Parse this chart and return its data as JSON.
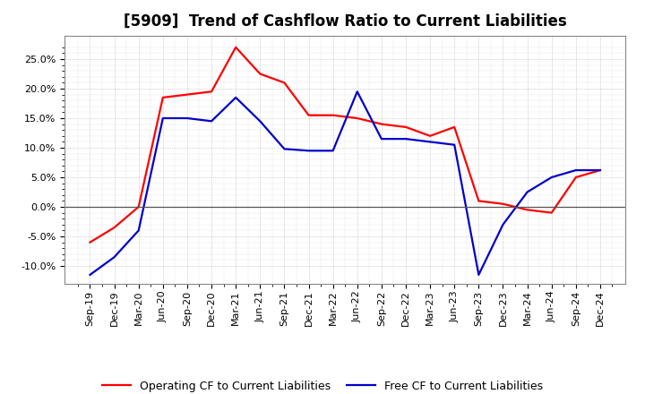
{
  "title": "[5909]  Trend of Cashflow Ratio to Current Liabilities",
  "x_labels": [
    "Sep-19",
    "Dec-19",
    "Mar-20",
    "Jun-20",
    "Sep-20",
    "Dec-20",
    "Mar-21",
    "Jun-21",
    "Sep-21",
    "Dec-21",
    "Mar-22",
    "Jun-22",
    "Sep-22",
    "Dec-22",
    "Mar-23",
    "Jun-23",
    "Sep-23",
    "Dec-23",
    "Mar-24",
    "Jun-24",
    "Sep-24",
    "Dec-24"
  ],
  "operating_cf": [
    -6.0,
    -3.5,
    0.0,
    18.5,
    19.0,
    19.5,
    27.0,
    22.5,
    21.0,
    15.5,
    15.5,
    15.0,
    14.0,
    13.5,
    12.0,
    13.5,
    1.0,
    0.5,
    -0.5,
    -1.0,
    5.0,
    6.2
  ],
  "free_cf": [
    -11.5,
    -8.5,
    -4.0,
    15.0,
    15.0,
    14.5,
    18.5,
    14.5,
    9.8,
    9.5,
    9.5,
    19.5,
    11.5,
    11.5,
    11.0,
    10.5,
    -11.5,
    -3.0,
    2.5,
    5.0,
    6.2,
    6.2
  ],
  "operating_color": "#ff0000",
  "free_color": "#0000cc",
  "ylim": [
    -13.0,
    29.0
  ],
  "yticks": [
    -10.0,
    -5.0,
    0.0,
    5.0,
    10.0,
    15.0,
    20.0,
    25.0
  ],
  "background_color": "#ffffff",
  "grid_color": "#888888",
  "legend_op": "Operating CF to Current Liabilities",
  "legend_free": "Free CF to Current Liabilities",
  "title_fontsize": 12,
  "axis_fontsize": 8,
  "legend_fontsize": 9
}
